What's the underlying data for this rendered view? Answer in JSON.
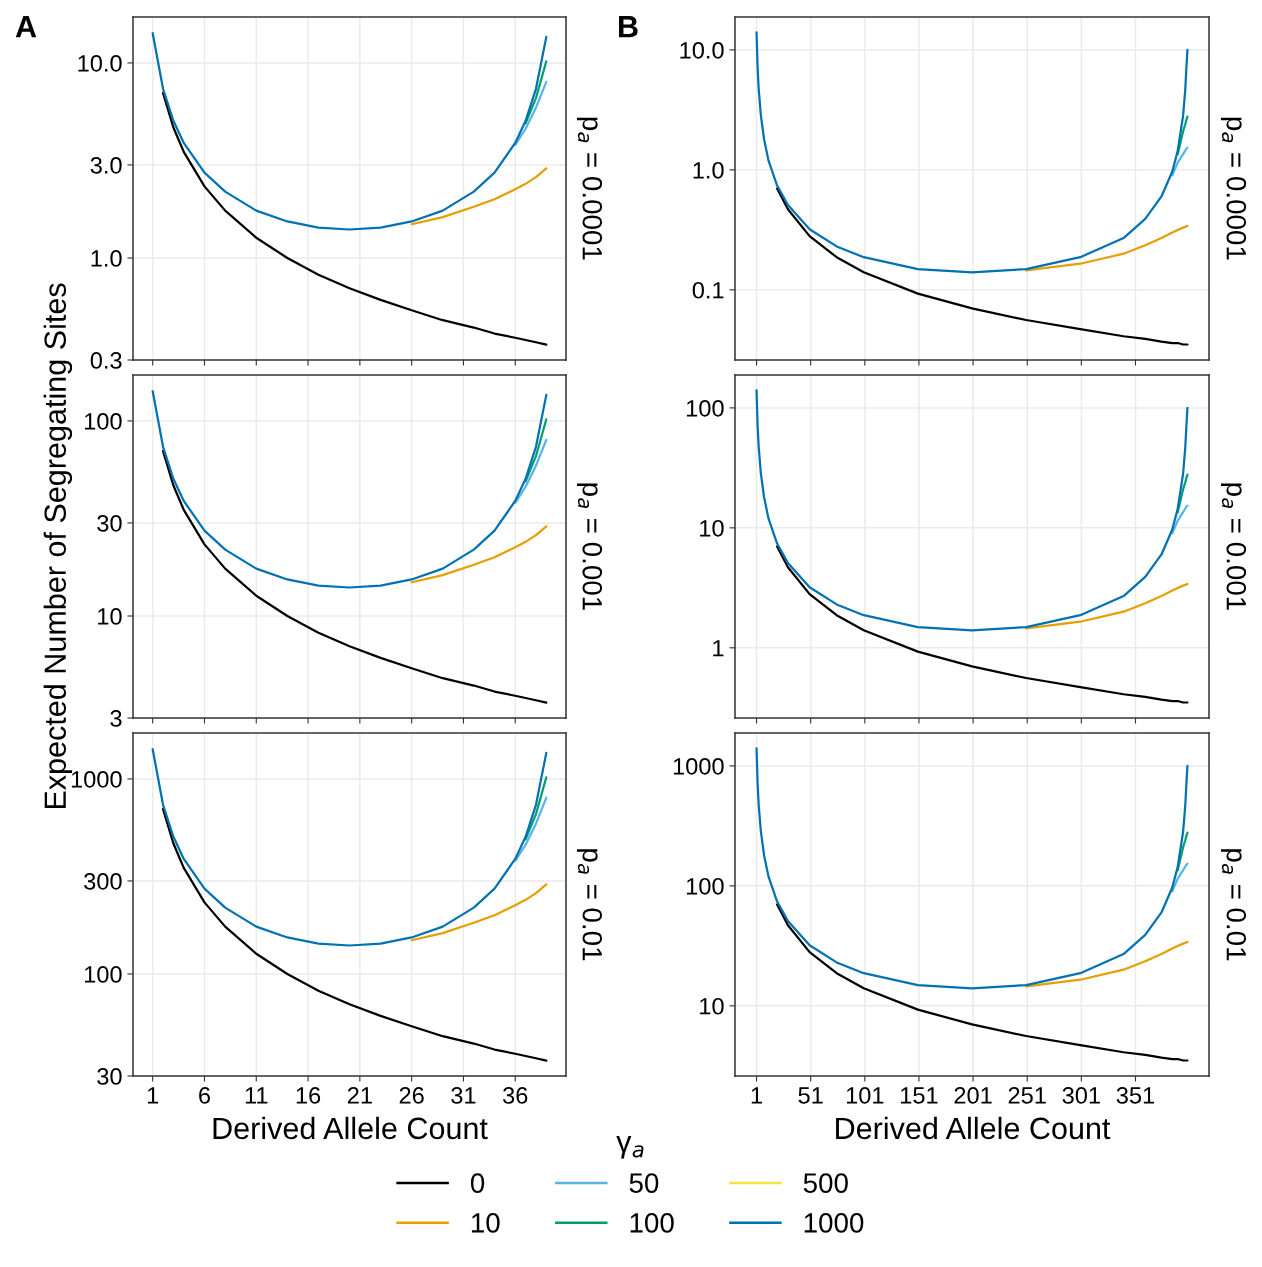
{
  "chart_data": [
    {
      "type": "line",
      "log": "y",
      "grid": true,
      "tick_labels": "y",
      "annotations": [
        "A"
      ],
      "y2label": "p$_{a}$ = 0.0001",
      "x": [
        1,
        2,
        3,
        4,
        6,
        8,
        11,
        14,
        17,
        20,
        23,
        26,
        29,
        32,
        34,
        36,
        37,
        38,
        39
      ],
      "xlim": [
        -0.9,
        40.9
      ],
      "xticks": [
        1,
        6,
        11,
        16,
        21,
        26,
        31,
        36
      ],
      "ylim": [
        0.3,
        17.2
      ],
      "yticks": [
        0.3,
        {
          "value": 1,
          "label": "1.0"
        },
        {
          "value": 3,
          "label": "3.0"
        },
        {
          "value": 10,
          "label": "10.0"
        }
      ],
      "series": [
        {
          "color": "#000000",
          "values": [
            null,
            7,
            4.67,
            3.5,
            2.33,
            1.75,
            1.27,
            1.0,
            0.82,
            0.7,
            0.61,
            0.54,
            0.48,
            0.44,
            0.41,
            0.39,
            0.38,
            0.37,
            0.36
          ]
        },
        {
          "color": "#e69f00",
          "values": [
            null,
            null,
            null,
            null,
            null,
            null,
            null,
            null,
            null,
            null,
            null,
            1.49,
            1.62,
            1.83,
            2.0,
            2.25,
            2.4,
            2.6,
            2.88
          ]
        },
        {
          "color": "#56b4e9",
          "values": [
            null,
            null,
            null,
            null,
            null,
            null,
            null,
            null,
            null,
            null,
            null,
            null,
            null,
            null,
            null,
            3.8,
            4.6,
            5.9,
            8.0
          ]
        },
        {
          "color": "#009e73",
          "values": [
            null,
            null,
            null,
            null,
            null,
            null,
            null,
            null,
            null,
            null,
            null,
            null,
            null,
            null,
            null,
            null,
            4.9,
            6.6,
            10.2
          ]
        },
        {
          "color": "#f0e442",
          "values": [
            null,
            null,
            null,
            null,
            null,
            null,
            null,
            null,
            null,
            null,
            null,
            null,
            null,
            null,
            null,
            null,
            null,
            null,
            null
          ]
        },
        {
          "color": "#0072b2",
          "values": [
            14.2,
            7.37,
            5.05,
            3.89,
            2.74,
            2.19,
            1.75,
            1.54,
            1.43,
            1.4,
            1.43,
            1.54,
            1.75,
            2.19,
            2.74,
            3.89,
            5.05,
            7.37,
            13.6
          ]
        }
      ]
    },
    {
      "type": "line",
      "log": "y",
      "grid": true,
      "tick_labels": "y",
      "annotations": [
        "B"
      ],
      "y2label": "p$_{a}$ = 0.0001",
      "x": [
        1,
        2,
        3,
        5,
        8,
        12,
        20,
        30,
        50,
        75,
        100,
        150,
        200,
        250,
        300,
        340,
        360,
        375,
        385,
        390,
        395,
        397,
        398,
        399
      ],
      "xlim": [
        -18.9,
        418.9
      ],
      "xticks": [
        1,
        51,
        101,
        151,
        201,
        251,
        301,
        351
      ],
      "ylim": [
        0.026,
        18.8
      ],
      "yticks": [
        0.1,
        {
          "value": 1,
          "label": "1.0"
        },
        {
          "value": 10,
          "label": "10.0"
        }
      ],
      "series": [
        {
          "color": "#000000",
          "values": [
            null,
            null,
            null,
            null,
            null,
            null,
            0.7,
            0.47,
            0.28,
            0.187,
            0.14,
            0.093,
            0.07,
            0.056,
            0.047,
            0.041,
            0.039,
            0.037,
            0.036,
            0.036,
            0.035,
            0.035,
            0.035,
            0.035
          ]
        },
        {
          "color": "#e69f00",
          "values": [
            null,
            null,
            null,
            null,
            null,
            null,
            null,
            null,
            null,
            null,
            null,
            null,
            null,
            0.145,
            0.165,
            0.2,
            0.235,
            0.27,
            0.3,
            0.315,
            0.33,
            0.335,
            0.338,
            0.341
          ]
        },
        {
          "color": "#56b4e9",
          "values": [
            null,
            null,
            null,
            null,
            null,
            null,
            null,
            null,
            null,
            null,
            null,
            null,
            null,
            null,
            null,
            null,
            null,
            null,
            0.9,
            1.15,
            1.35,
            1.45,
            1.5,
            1.53
          ]
        },
        {
          "color": "#009e73",
          "values": [
            null,
            null,
            null,
            null,
            null,
            null,
            null,
            null,
            null,
            null,
            null,
            null,
            null,
            null,
            null,
            null,
            null,
            null,
            null,
            1.35,
            2.1,
            2.4,
            2.6,
            2.78
          ]
        },
        {
          "color": "#f0e442",
          "values": [
            null,
            null,
            null,
            null,
            null,
            null,
            null,
            null,
            null,
            null,
            null,
            null,
            null,
            null,
            null,
            null,
            null,
            null,
            null,
            null,
            null,
            null,
            null,
            null
          ]
        },
        {
          "color": "#0072b2",
          "values": [
            14,
            7.04,
            4.7,
            2.84,
            1.79,
            1.2,
            0.74,
            0.51,
            0.32,
            0.23,
            0.187,
            0.149,
            0.14,
            0.149,
            0.187,
            0.27,
            0.39,
            0.6,
            0.97,
            1.44,
            2.84,
            4.7,
            7.04,
            10
          ]
        }
      ]
    },
    {
      "type": "line",
      "log": "y",
      "grid": true,
      "tick_labels": "y",
      "ylabel": "Expected Number of Segregating Sites",
      "y2label": "p$_{a}$ = 0.001",
      "x": [
        1,
        2,
        3,
        4,
        6,
        8,
        11,
        14,
        17,
        20,
        23,
        26,
        29,
        32,
        34,
        36,
        37,
        38,
        39
      ],
      "xlim": [
        -0.9,
        40.9
      ],
      "xticks": [
        1,
        6,
        11,
        16,
        21,
        26,
        31,
        36
      ],
      "ylim": [
        3,
        172
      ],
      "yticks": [
        3,
        10,
        30,
        100
      ],
      "series": [
        {
          "color": "#000000",
          "values": [
            null,
            70,
            46.7,
            35,
            23.3,
            17.5,
            12.7,
            10,
            8.2,
            7,
            6.1,
            5.4,
            4.8,
            4.4,
            4.1,
            3.9,
            3.8,
            3.7,
            3.6
          ]
        },
        {
          "color": "#e69f00",
          "values": [
            null,
            null,
            null,
            null,
            null,
            null,
            null,
            null,
            null,
            null,
            null,
            14.9,
            16.2,
            18.3,
            20,
            22.5,
            24,
            26,
            28.8
          ]
        },
        {
          "color": "#56b4e9",
          "values": [
            null,
            null,
            null,
            null,
            null,
            null,
            null,
            null,
            null,
            null,
            null,
            null,
            null,
            null,
            null,
            38,
            46,
            59,
            80
          ]
        },
        {
          "color": "#009e73",
          "values": [
            null,
            null,
            null,
            null,
            null,
            null,
            null,
            null,
            null,
            null,
            null,
            null,
            null,
            null,
            null,
            null,
            49,
            66,
            102
          ]
        },
        {
          "color": "#f0e442",
          "values": [
            null,
            null,
            null,
            null,
            null,
            null,
            null,
            null,
            null,
            null,
            null,
            null,
            null,
            null,
            null,
            null,
            null,
            null,
            null
          ]
        },
        {
          "color": "#0072b2",
          "values": [
            142,
            73.7,
            50.5,
            38.9,
            27.4,
            21.9,
            17.5,
            15.4,
            14.3,
            14,
            14.3,
            15.4,
            17.5,
            21.9,
            27.4,
            38.9,
            50.5,
            73.7,
            136
          ]
        }
      ]
    },
    {
      "type": "line",
      "log": "y",
      "grid": true,
      "tick_labels": "y",
      "y2label": "p$_{a}$ = 0.001",
      "x": [
        1,
        2,
        3,
        5,
        8,
        12,
        20,
        30,
        50,
        75,
        100,
        150,
        200,
        250,
        300,
        340,
        360,
        375,
        385,
        390,
        395,
        397,
        398,
        399
      ],
      "xlim": [
        -18.9,
        418.9
      ],
      "xticks": [
        1,
        51,
        101,
        151,
        201,
        251,
        301,
        351
      ],
      "ylim": [
        0.26,
        188
      ],
      "yticks": [
        1,
        10,
        100
      ],
      "series": [
        {
          "color": "#000000",
          "values": [
            null,
            null,
            null,
            null,
            null,
            null,
            7,
            4.7,
            2.8,
            1.87,
            1.4,
            0.93,
            0.7,
            0.56,
            0.47,
            0.41,
            0.39,
            0.37,
            0.36,
            0.36,
            0.35,
            0.35,
            0.35,
            0.35
          ]
        },
        {
          "color": "#e69f00",
          "values": [
            null,
            null,
            null,
            null,
            null,
            null,
            null,
            null,
            null,
            null,
            null,
            null,
            null,
            1.45,
            1.65,
            2,
            2.35,
            2.7,
            3,
            3.15,
            3.3,
            3.35,
            3.38,
            3.41
          ]
        },
        {
          "color": "#56b4e9",
          "values": [
            null,
            null,
            null,
            null,
            null,
            null,
            null,
            null,
            null,
            null,
            null,
            null,
            null,
            null,
            null,
            null,
            null,
            null,
            9,
            11.5,
            13.5,
            14.5,
            15,
            15.3
          ]
        },
        {
          "color": "#009e73",
          "values": [
            null,
            null,
            null,
            null,
            null,
            null,
            null,
            null,
            null,
            null,
            null,
            null,
            null,
            null,
            null,
            null,
            null,
            null,
            null,
            13.5,
            21,
            24,
            26,
            27.8
          ]
        },
        {
          "color": "#f0e442",
          "values": [
            null,
            null,
            null,
            null,
            null,
            null,
            null,
            null,
            null,
            null,
            null,
            null,
            null,
            null,
            null,
            null,
            null,
            null,
            null,
            null,
            null,
            null,
            null,
            null
          ]
        },
        {
          "color": "#0072b2",
          "values": [
            140,
            70.4,
            47,
            28.4,
            17.9,
            12,
            7.4,
            5.1,
            3.2,
            2.3,
            1.87,
            1.49,
            1.4,
            1.49,
            1.87,
            2.7,
            3.9,
            6,
            9.7,
            14.4,
            28.4,
            47,
            70.4,
            100
          ]
        }
      ]
    },
    {
      "type": "line",
      "log": "y",
      "grid": true,
      "xlabel": "Derived Allele Count",
      "y2label": "p$_{a}$ = 0.01",
      "x": [
        1,
        2,
        3,
        4,
        6,
        8,
        11,
        14,
        17,
        20,
        23,
        26,
        29,
        32,
        34,
        36,
        37,
        38,
        39
      ],
      "xlim": [
        -0.9,
        40.9
      ],
      "xticks": [
        1,
        6,
        11,
        16,
        21,
        26,
        31,
        36
      ],
      "ylim": [
        30,
        1720
      ],
      "yticks": [
        30,
        100,
        300,
        1000
      ],
      "series": [
        {
          "color": "#000000",
          "values": [
            null,
            700,
            467,
            350,
            233,
            175,
            127,
            100,
            82,
            70,
            61,
            54,
            48,
            44,
            41,
            39,
            38,
            37,
            36
          ]
        },
        {
          "color": "#e69f00",
          "values": [
            null,
            null,
            null,
            null,
            null,
            null,
            null,
            null,
            null,
            null,
            null,
            149,
            162,
            183,
            200,
            225,
            240,
            260,
            288
          ]
        },
        {
          "color": "#56b4e9",
          "values": [
            null,
            null,
            null,
            null,
            null,
            null,
            null,
            null,
            null,
            null,
            null,
            null,
            null,
            null,
            null,
            380,
            460,
            590,
            800
          ]
        },
        {
          "color": "#009e73",
          "values": [
            null,
            null,
            null,
            null,
            null,
            null,
            null,
            null,
            null,
            null,
            null,
            null,
            null,
            null,
            null,
            null,
            490,
            660,
            1020
          ]
        },
        {
          "color": "#f0e442",
          "values": [
            null,
            null,
            null,
            null,
            null,
            null,
            null,
            null,
            null,
            null,
            null,
            null,
            null,
            null,
            null,
            null,
            null,
            null,
            null
          ]
        },
        {
          "color": "#0072b2",
          "values": [
            1420,
            737,
            505,
            389,
            274,
            219,
            175,
            154,
            143,
            140,
            143,
            154,
            175,
            219,
            274,
            389,
            505,
            737,
            1360
          ]
        }
      ]
    },
    {
      "type": "line",
      "log": "y",
      "grid": true,
      "xlabel": "Derived Allele Count",
      "y2label": "p$_{a}$ = 0.01",
      "legend": "bottom",
      "legend_title": "γ$_{a}$",
      "x": [
        1,
        2,
        3,
        5,
        8,
        12,
        20,
        30,
        50,
        75,
        100,
        150,
        200,
        250,
        300,
        340,
        360,
        375,
        385,
        390,
        395,
        397,
        398,
        399
      ],
      "xlim": [
        -18.9,
        418.9
      ],
      "xticks": [
        1,
        51,
        101,
        151,
        201,
        251,
        301,
        351
      ],
      "ylim": [
        2.6,
        1880
      ],
      "yticks": [
        10,
        100,
        1000
      ],
      "series": [
        {
          "name": "0",
          "color": "#000000",
          "values": [
            null,
            null,
            null,
            null,
            null,
            null,
            70,
            47,
            28,
            18.7,
            14,
            9.3,
            7,
            5.6,
            4.7,
            4.1,
            3.9,
            3.7,
            3.6,
            3.6,
            3.5,
            3.5,
            3.5,
            3.5
          ]
        },
        {
          "name": "10",
          "color": "#e69f00",
          "values": [
            null,
            null,
            null,
            null,
            null,
            null,
            null,
            null,
            null,
            null,
            null,
            null,
            null,
            14.5,
            16.5,
            20,
            23.5,
            27,
            30,
            31.5,
            33,
            33.5,
            33.8,
            34.1
          ]
        },
        {
          "name": "50",
          "color": "#56b4e9",
          "values": [
            null,
            null,
            null,
            null,
            null,
            null,
            null,
            null,
            null,
            null,
            null,
            null,
            null,
            null,
            null,
            null,
            null,
            null,
            90,
            115,
            135,
            145,
            150,
            153
          ]
        },
        {
          "name": "100",
          "color": "#009e73",
          "values": [
            null,
            null,
            null,
            null,
            null,
            null,
            null,
            null,
            null,
            null,
            null,
            null,
            null,
            null,
            null,
            null,
            null,
            null,
            null,
            135,
            210,
            240,
            260,
            278
          ]
        },
        {
          "name": "500",
          "color": "#f0e442",
          "values": [
            null,
            null,
            null,
            null,
            null,
            null,
            null,
            null,
            null,
            null,
            null,
            null,
            null,
            null,
            null,
            null,
            null,
            null,
            null,
            null,
            null,
            null,
            null,
            null
          ]
        },
        {
          "name": "1000",
          "color": "#0072b2",
          "values": [
            1400,
            704,
            470,
            284,
            179,
            120,
            74,
            51,
            32,
            23,
            18.7,
            14.9,
            14,
            14.9,
            18.7,
            27,
            39,
            60,
            97,
            144,
            284,
            470,
            704,
            1000
          ]
        }
      ]
    }
  ]
}
